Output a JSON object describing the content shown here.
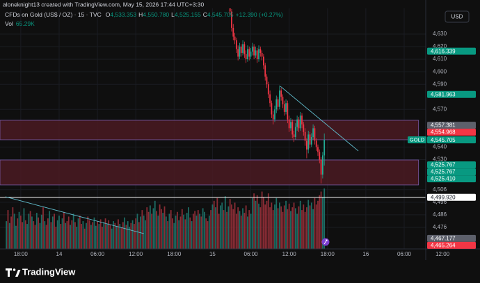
{
  "header": {
    "author": "aloneknight13 created with TradingView.com, May 15, 2026 17:44 UTC+3:30",
    "symbol": "CFDs on Gold (US$ / OZ) · 15 · TVC",
    "o_label": "O",
    "open": "4,533.353",
    "h_label": "H",
    "high": "4,550.780",
    "l_label": "L",
    "low": "4,525.155",
    "c_label": "C",
    "close": "4,545.705",
    "change": "+12.390 (+0.27%)",
    "vol_label": "Vol",
    "vol": "65.29K"
  },
  "currency": "USD",
  "footer": "TradingView",
  "chart_data": {
    "type": "candlestick",
    "xlim": [
      -4,
      262.5
    ],
    "xticks": [
      {
        "value": 9,
        "label": "18:00"
      },
      {
        "value": 33,
        "label": "14"
      },
      {
        "value": 57,
        "label": "06:00"
      },
      {
        "value": 81,
        "label": "12:00"
      },
      {
        "value": 105,
        "label": "18:00"
      },
      {
        "value": 129,
        "label": "15"
      },
      {
        "value": 153,
        "label": "06:00"
      },
      {
        "value": 177,
        "label": "12:00"
      },
      {
        "value": 201,
        "label": "18:00"
      },
      {
        "value": 225,
        "label": "16"
      },
      {
        "value": 249,
        "label": "06:00"
      },
      {
        "value": 273,
        "label": "12:00"
      }
    ],
    "ylim": [
      4458.8,
      4650.5
    ],
    "yticks": [
      {
        "value": 4630,
        "label": "4,630"
      },
      {
        "value": 4620,
        "label": "4,620"
      },
      {
        "value": 4610,
        "label": "4,610"
      },
      {
        "value": 4600,
        "label": "4,600"
      },
      {
        "value": 4590,
        "label": "4,590"
      },
      {
        "value": 4570,
        "label": "4,570"
      },
      {
        "value": 4540,
        "label": "4,540"
      },
      {
        "value": 4530,
        "label": "4,530"
      },
      {
        "value": 4506,
        "label": "4,506"
      },
      {
        "value": 4496,
        "label": "4,496"
      },
      {
        "value": 4486,
        "label": "4,486"
      },
      {
        "value": 4476,
        "label": "4,476"
      }
    ],
    "grid": true,
    "up_color": "#22ab94",
    "down_color": "#f23645",
    "candles": {
      "x": [
        140,
        141,
        142,
        143,
        144,
        145,
        146,
        147,
        148,
        149,
        150,
        151,
        152,
        153,
        154,
        155,
        156,
        157,
        158,
        159,
        160,
        161,
        162,
        163,
        164,
        165,
        166,
        167,
        168,
        169,
        170,
        171,
        172,
        173,
        174,
        175,
        176,
        177,
        178,
        179,
        180,
        181,
        182,
        183,
        184,
        185,
        186,
        187,
        188,
        189,
        190,
        191,
        192,
        193,
        194,
        195,
        196,
        197,
        198,
        199
      ],
      "open": [
        4652,
        4648,
        4635,
        4628,
        4625,
        4618,
        4612,
        4620,
        4615,
        4622,
        4614,
        4610,
        4618,
        4612,
        4616,
        4620,
        4613,
        4617,
        4610,
        4618,
        4615,
        4612,
        4605,
        4596,
        4590,
        4582,
        4575,
        4566,
        4562,
        4570,
        4578,
        4572,
        4585,
        4580,
        4574,
        4568,
        4575,
        4562,
        4555,
        4560,
        4550,
        4548,
        4556,
        4562,
        4555,
        4565,
        4558,
        4552,
        4545,
        4538,
        4550,
        4542,
        4548,
        4555,
        4545,
        4540,
        4536,
        4530,
        4518,
        4533.353
      ],
      "high": [
        4655,
        4650,
        4638,
        4631,
        4627,
        4621,
        4623,
        4622,
        4625,
        4624,
        4617,
        4621,
        4620,
        4619,
        4623,
        4622,
        4620,
        4619,
        4621,
        4620,
        4617,
        4614,
        4607,
        4598,
        4592,
        4585,
        4577,
        4569,
        4573,
        4581,
        4580,
        4589,
        4587,
        4582,
        4577,
        4578,
        4577,
        4565,
        4563,
        4562,
        4553,
        4559,
        4565,
        4564,
        4568,
        4567,
        4560,
        4555,
        4547,
        4553,
        4552,
        4551,
        4558,
        4557,
        4547,
        4542,
        4538,
        4532,
        4536,
        4550.78
      ],
      "low": [
        4645,
        4632,
        4625,
        4622,
        4615,
        4609,
        4610,
        4612,
        4613,
        4611,
        4607,
        4608,
        4609,
        4610,
        4613,
        4610,
        4611,
        4607,
        4608,
        4612,
        4609,
        4602,
        4593,
        4587,
        4579,
        4572,
        4563,
        4558,
        4560,
        4567,
        4569,
        4570,
        4577,
        4571,
        4565,
        4566,
        4559,
        4552,
        4553,
        4547,
        4544,
        4546,
        4553,
        4552,
        4553,
        4555,
        4549,
        4541,
        4531,
        4535,
        4539,
        4540,
        4546,
        4542,
        4537,
        4533,
        4527,
        4511,
        4515,
        4525.155
      ],
      "close": [
        4648,
        4635,
        4628,
        4625,
        4618,
        4612,
        4620,
        4615,
        4622,
        4614,
        4610,
        4618,
        4612,
        4616,
        4620,
        4613,
        4617,
        4610,
        4618,
        4615,
        4612,
        4605,
        4596,
        4590,
        4582,
        4575,
        4566,
        4562,
        4570,
        4578,
        4572,
        4585,
        4580,
        4574,
        4568,
        4575,
        4562,
        4555,
        4560,
        4550,
        4548,
        4556,
        4562,
        4555,
        4565,
        4558,
        4552,
        4545,
        4538,
        4550,
        4542,
        4548,
        4555,
        4545,
        4540,
        4536,
        4530,
        4518,
        4533.353,
        4545.705
      ]
    },
    "volume": {
      "ylim": [
        0,
        260
      ],
      "up_color": "#1d6b63",
      "down_color": "#8a2c35",
      "values": [
        30,
        42,
        28,
        35,
        45,
        38,
        25,
        33,
        40,
        36,
        29,
        44,
        31,
        27,
        38,
        41,
        35,
        30,
        26,
        39,
        34,
        28,
        37,
        45,
        30,
        26,
        33,
        41,
        29,
        35,
        38,
        24,
        31,
        36,
        27,
        33,
        40,
        28,
        30,
        35,
        26,
        31,
        38,
        29,
        24,
        33,
        36,
        27,
        30,
        22,
        28,
        35,
        31,
        26,
        29,
        34,
        25,
        30,
        27,
        32,
        24,
        29,
        33,
        27,
        31,
        26,
        22,
        30,
        28,
        25,
        32,
        27,
        23,
        29,
        34,
        26,
        30,
        24,
        28,
        31,
        27,
        33,
        38,
        29,
        35,
        42,
        36,
        31,
        45,
        40,
        47,
        38,
        44,
        52,
        41,
        36,
        48,
        43,
        39,
        46,
        35,
        30,
        38,
        42,
        33,
        28,
        36,
        40,
        31,
        35,
        43,
        37,
        32,
        39,
        45,
        34,
        30,
        38,
        41,
        36,
        42,
        38,
        35,
        44,
        40,
        33,
        30,
        36,
        42,
        48,
        52,
        45,
        55,
        38,
        47,
        50,
        42,
        57,
        40,
        46,
        54,
        48,
        43,
        50,
        38,
        45,
        41,
        36,
        44,
        39,
        47,
        35,
        42,
        38,
        55,
        60,
        52,
        58,
        49,
        45,
        62,
        56,
        48,
        52,
        60,
        45,
        50,
        42,
        48,
        55,
        44,
        50,
        46,
        40,
        47,
        52,
        43,
        49,
        41,
        45,
        50,
        44,
        38,
        46,
        52,
        42,
        48,
        40,
        45,
        53,
        47,
        50,
        43,
        55,
        48,
        52,
        58,
        62,
        56,
        65.29
      ],
      "up": [
        1,
        0,
        1,
        0,
        0,
        1,
        1,
        0,
        1,
        0,
        0,
        1,
        0,
        1,
        1,
        0,
        1,
        0,
        0,
        1,
        0,
        1,
        1,
        0,
        1,
        0,
        0,
        1,
        0,
        1,
        0,
        0,
        1,
        1,
        0,
        1,
        0,
        1,
        0,
        0,
        1,
        0,
        1,
        0,
        1,
        1,
        0,
        0,
        1,
        0,
        1,
        0,
        0,
        1,
        0,
        1,
        1,
        0,
        1,
        0,
        0,
        1,
        0,
        1,
        0,
        0,
        1,
        1,
        0,
        1,
        0,
        1,
        0,
        0,
        1,
        0,
        1,
        1,
        0,
        1,
        0,
        0,
        1,
        0,
        1,
        0,
        1,
        1,
        0,
        0,
        1,
        0,
        1,
        1,
        0,
        1,
        0,
        0,
        1,
        0,
        1,
        0,
        1,
        0,
        0,
        1,
        1,
        0,
        1,
        0,
        0,
        1,
        0,
        1,
        1,
        0,
        1,
        0,
        0,
        1,
        0,
        1,
        0,
        1,
        1,
        0,
        0,
        1,
        0,
        1,
        0,
        1,
        0,
        0,
        1,
        1,
        0,
        1,
        0,
        1,
        0,
        0,
        0,
        0,
        0,
        0,
        1,
        0,
        1,
        0,
        0,
        1,
        0,
        1,
        1,
        0,
        1,
        0,
        1,
        0,
        0,
        0,
        0,
        0,
        0,
        0,
        0,
        0,
        1,
        1,
        0,
        1,
        0,
        0,
        0,
        1,
        0,
        0,
        1,
        0,
        0,
        1,
        1,
        0,
        1,
        0,
        0,
        0,
        0,
        1,
        0,
        1,
        1,
        0,
        0,
        0,
        0,
        0,
        1,
        1
      ]
    },
    "zones": [
      {
        "top": 4561.3,
        "bottom": 4545.8,
        "x": [
          -4,
          258
        ],
        "color": "#4a1a22"
      },
      {
        "top": 4529.7,
        "bottom": 4509.8,
        "x": [
          -4,
          258
        ],
        "color": "#4a1a22"
      }
    ],
    "trendlines": [
      {
        "x": [
          171.5,
          220.3
        ],
        "y": [
          4588.4,
          4536.9
        ],
        "color": "#5fb9c9"
      },
      {
        "x": [
          -0.6,
          86
        ],
        "y": [
          4500.4,
          4471
        ],
        "color": "#5fb9c9"
      }
    ],
    "hlines": [
      {
        "value": 4499.92,
        "color": "#ffffff"
      }
    ],
    "price_labels": [
      {
        "value": 4616.339,
        "label": "4,616.339",
        "color": "#089981"
      },
      {
        "value": 4581.963,
        "label": "4,581.963",
        "color": "#089981"
      },
      {
        "value": 4557.381,
        "label": "4,557.381",
        "color": "#5d606b"
      },
      {
        "value": 4554.968,
        "label": "4,554.968",
        "color": "#f23645"
      },
      {
        "value": 4545.705,
        "label": "4,545.705",
        "tag": "GOLD",
        "color": "#089981"
      },
      {
        "value": 4525.767,
        "label": "4,525.767",
        "color": "#089981"
      },
      {
        "value": 4525.767,
        "label": "4,525.767",
        "color": "#089981"
      },
      {
        "value": 4525.41,
        "label": "4,525.410",
        "color": "#089981"
      },
      {
        "value": 4499.92,
        "label": "4,499.920",
        "color": "#ffffff"
      },
      {
        "value": 4467.177,
        "label": "4,467.177",
        "color": "#5d606b"
      },
      {
        "value": 4465.264,
        "label": "4,465.264",
        "color": "#f23645"
      }
    ]
  }
}
